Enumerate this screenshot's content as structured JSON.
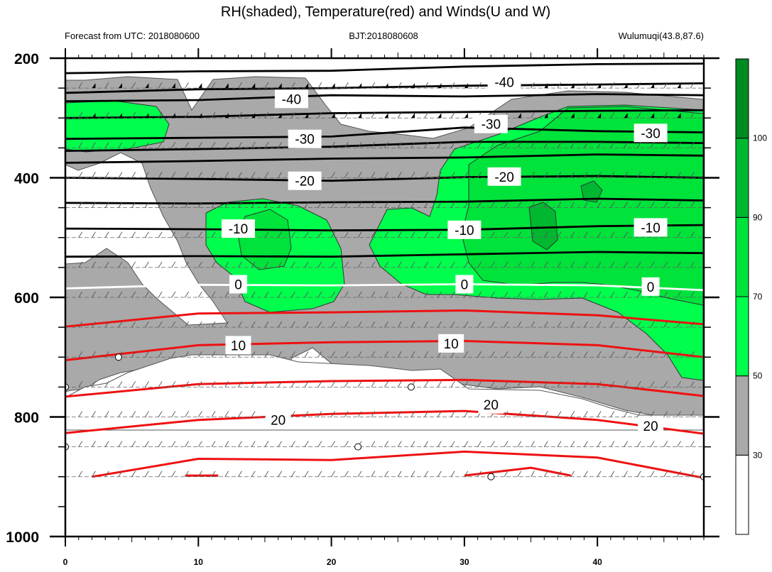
{
  "chart_data": {
    "type": "contour",
    "title": "RH(shaded), Temperature(red) and Winds(U and W)",
    "subtitle_left": "Forecast from UTC: 2018080600",
    "subtitle_center": "BJT:2018080608",
    "subtitle_right": "Wulumuqi(43.8,87.6)",
    "x": {
      "range": [
        0,
        48
      ],
      "ticks": [
        0,
        10,
        20,
        30,
        40
      ]
    },
    "y": {
      "range": [
        200,
        1000
      ],
      "ticks": [
        200,
        400,
        600,
        800,
        1000
      ],
      "inverted": true
    },
    "colorbar": {
      "levels": [
        30,
        50,
        70,
        90,
        100
      ],
      "colors": [
        "#ffffff",
        "#a9a9a9",
        "#00ff4c",
        "#00e33b",
        "#00b82f",
        "#008a22"
      ]
    },
    "isotherm_labels": [
      {
        "x": 17,
        "y": 268,
        "text": "-40"
      },
      {
        "x": 33,
        "y": 240,
        "text": "-40"
      },
      {
        "x": 18,
        "y": 335,
        "text": "-30"
      },
      {
        "x": 32,
        "y": 310,
        "text": "-30"
      },
      {
        "x": 44,
        "y": 325,
        "text": "-30"
      },
      {
        "x": 18,
        "y": 405,
        "text": "-20"
      },
      {
        "x": 33,
        "y": 398,
        "text": "-20"
      },
      {
        "x": 13,
        "y": 485,
        "text": "-10"
      },
      {
        "x": 30,
        "y": 487,
        "text": "-10"
      },
      {
        "x": 44,
        "y": 483,
        "text": "-10"
      },
      {
        "x": 13,
        "y": 578,
        "text": "0"
      },
      {
        "x": 30,
        "y": 578,
        "text": "0"
      },
      {
        "x": 44,
        "y": 582,
        "text": "0"
      },
      {
        "x": 13,
        "y": 680,
        "text": "10"
      },
      {
        "x": 29,
        "y": 677,
        "text": "10"
      },
      {
        "x": 16,
        "y": 805,
        "text": "20"
      },
      {
        "x": 32,
        "y": 779,
        "text": "20"
      },
      {
        "x": 44,
        "y": 815,
        "text": "20"
      }
    ]
  }
}
